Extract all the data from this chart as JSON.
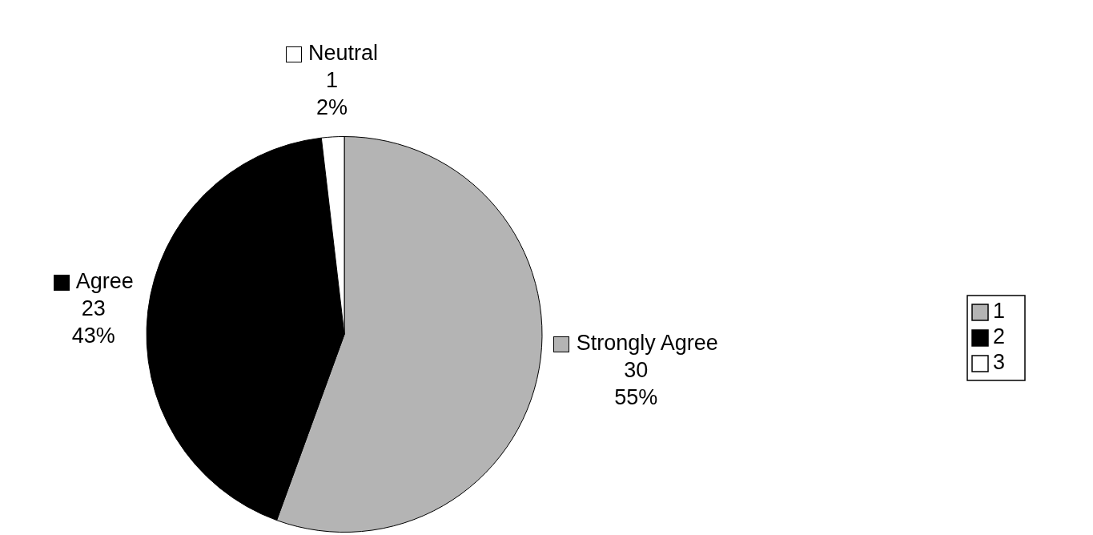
{
  "chart_data": {
    "type": "pie",
    "categories": [
      "1",
      "2",
      "3"
    ],
    "values": [
      30,
      23,
      1
    ],
    "colors": [
      "#b4b4b4",
      "#000000",
      "#ffffff"
    ],
    "value_labels": [
      "Strongly Agree\n30\n55%",
      "Agree\n23\n43%",
      "Neutral\n1\n2%"
    ],
    "legend": "right"
  }
}
